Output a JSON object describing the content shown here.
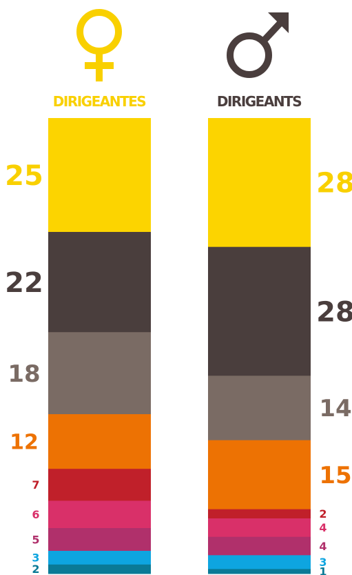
{
  "chart_data": {
    "type": "bar",
    "stacked": true,
    "series": [
      {
        "name": "DIRIGEANTES",
        "symbol": "female-symbol-icon",
        "symbol_color": "#F9D000",
        "title_color": "#F9D000",
        "values": [
          25,
          22,
          18,
          12,
          7,
          6,
          5,
          3,
          2
        ]
      },
      {
        "name": "DIRIGEANTS",
        "symbol": "male-symbol-icon",
        "symbol_color": "#4A3E3D",
        "title_color": "#4A3E3D",
        "values": [
          28,
          28,
          14,
          15,
          2,
          4,
          4,
          3,
          1
        ]
      }
    ],
    "segment_colors": [
      "#FCD400",
      "#4A3E3D",
      "#7A6B64",
      "#ED7203",
      "#C0202A",
      "#D93069",
      "#B0306B",
      "#0EA5E0",
      "#0A7A96"
    ],
    "label_colors": [
      "#F9D000",
      "#4A3E3D",
      "#7A6B64",
      "#ED7203",
      "#C0202A",
      "#D93069",
      "#B0306B",
      "#0EA5E0",
      "#0A7A96"
    ]
  }
}
